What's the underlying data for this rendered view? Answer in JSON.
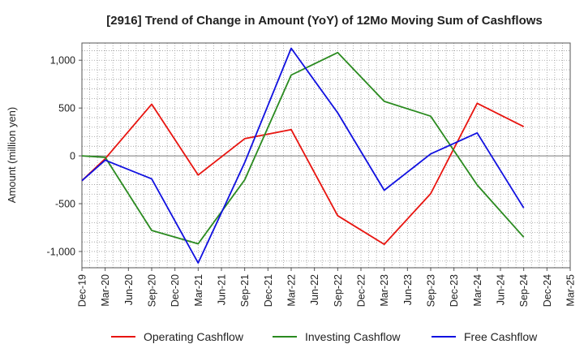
{
  "chart_data": {
    "type": "line",
    "title": "[2916]  Trend of Change in Amount (YoY) of 12Mo Moving Sum of Cashflows",
    "xlabel": "",
    "ylabel": "Amount (million yen)",
    "ylim": [
      -1170,
      1180
    ],
    "yticks": [
      1000,
      500,
      0,
      -500,
      -1000
    ],
    "ytick_labels": [
      "1,000",
      "500",
      "0",
      "-500",
      "-1,000"
    ],
    "categories": [
      "Dec-19",
      "Mar-20",
      "Jun-20",
      "Sep-20",
      "Dec-20",
      "Mar-21",
      "Jun-21",
      "Sep-21",
      "Dec-21",
      "Mar-22",
      "Jun-22",
      "Sep-22",
      "Dec-22",
      "Mar-23",
      "Jun-23",
      "Sep-23",
      "Dec-23",
      "Mar-24",
      "Jun-24",
      "Sep-24",
      "Dec-24",
      "Mar-25"
    ],
    "grid": true,
    "legend_position": "bottom",
    "series": [
      {
        "name": "Operating Cashflow",
        "color": "#e8140f",
        "values": [
          -260,
          -30,
          null,
          540,
          null,
          -200,
          null,
          180,
          null,
          275,
          null,
          -625,
          null,
          -925,
          null,
          -395,
          null,
          550,
          null,
          305,
          null,
          null
        ]
      },
      {
        "name": "Investing Cashflow",
        "color": "#2a8a1f",
        "values": [
          0,
          -15,
          null,
          -780,
          null,
          -920,
          null,
          -250,
          null,
          845,
          null,
          1080,
          null,
          570,
          null,
          415,
          null,
          -305,
          null,
          -850,
          null,
          null
        ]
      },
      {
        "name": "Free Cashflow",
        "color": "#1010e0",
        "values": [
          -260,
          -45,
          null,
          -240,
          null,
          -1120,
          null,
          -70,
          null,
          1125,
          null,
          450,
          null,
          -360,
          null,
          20,
          null,
          240,
          null,
          -545,
          null,
          null
        ]
      }
    ]
  }
}
